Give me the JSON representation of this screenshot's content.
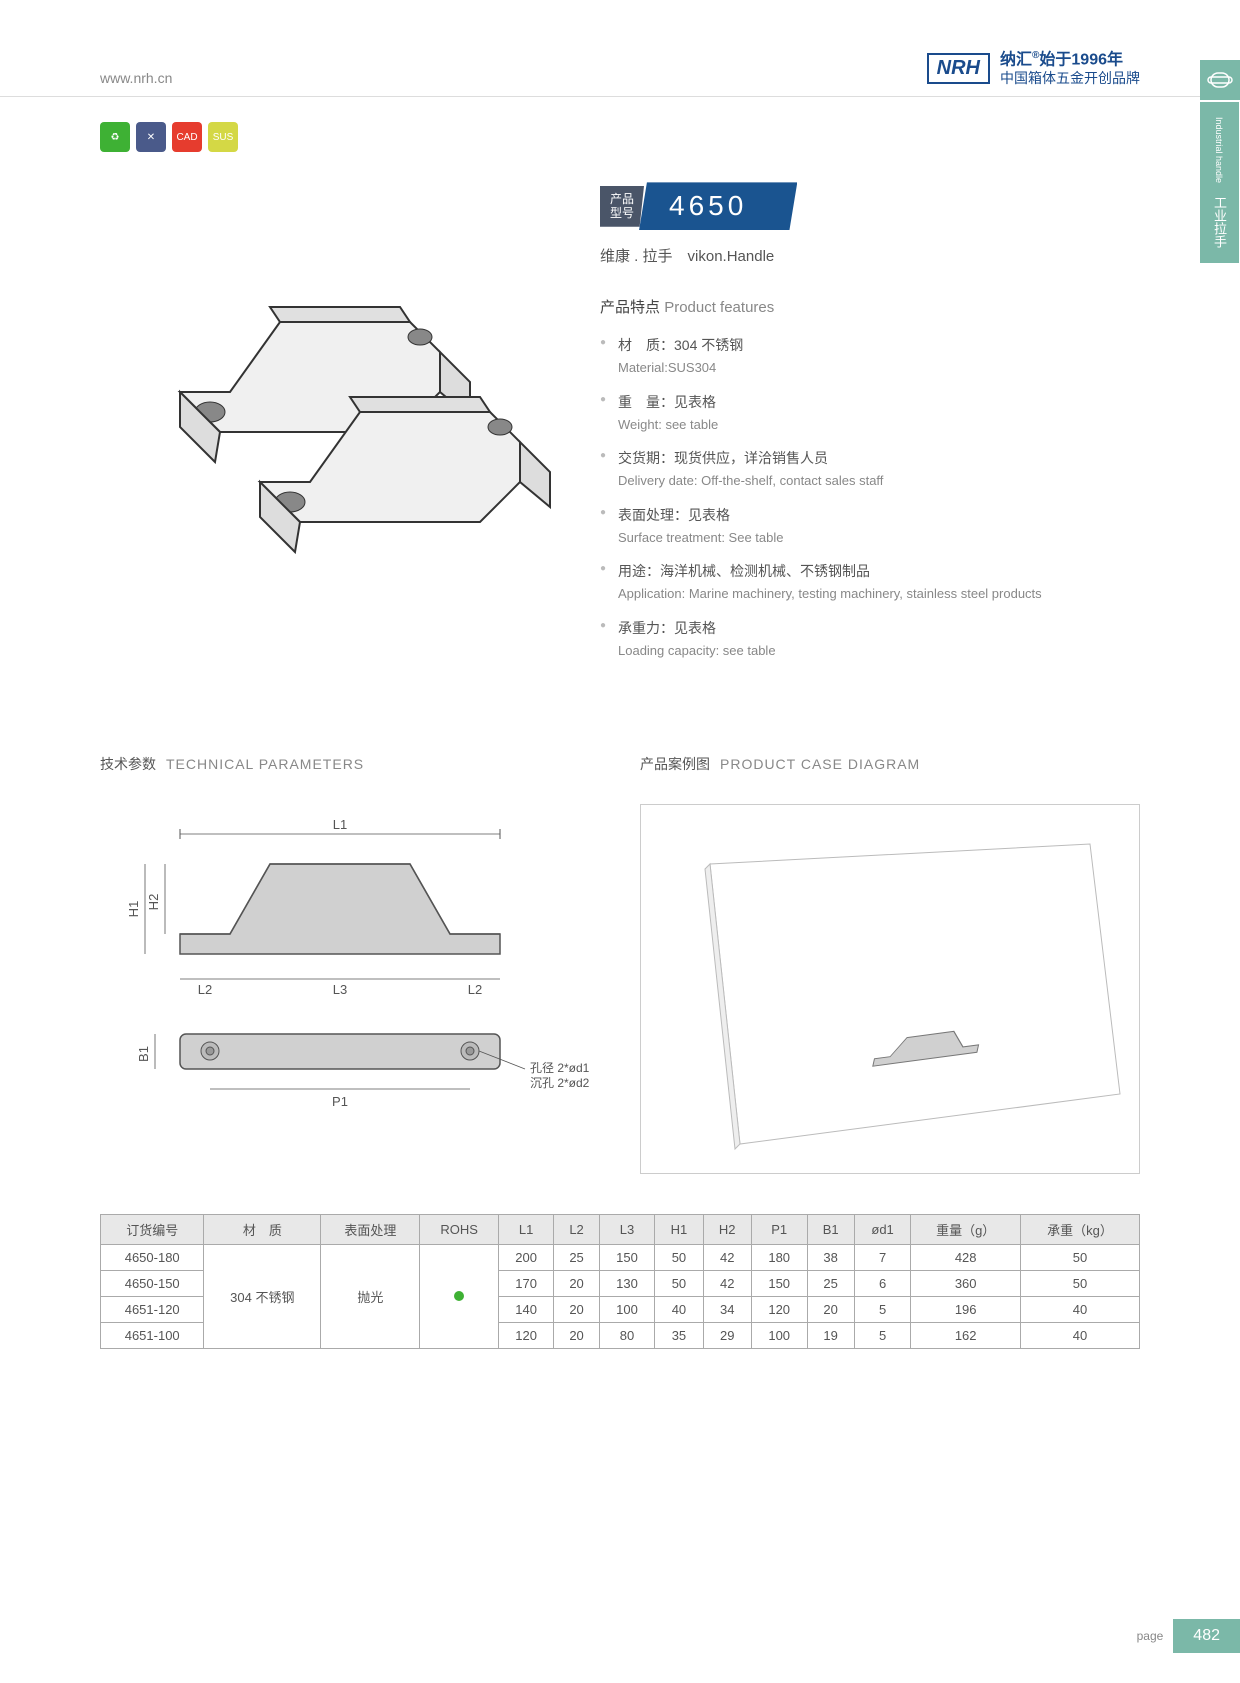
{
  "header": {
    "url": "www.nrh.cn",
    "logo": "NRH",
    "brand_top": "纳汇",
    "brand_year": "始于1996年",
    "brand_sub": "中国箱体五金开创品牌",
    "reg": "®"
  },
  "side_tab": {
    "cn": "工业拉手",
    "en": "Industrial handle"
  },
  "badges": {
    "b1": "♻",
    "b2": "✕",
    "b3": "CAD",
    "b4": "SUS"
  },
  "model": {
    "label": "产品\n型号",
    "number": "4650",
    "name_cn": "维康 . 拉手",
    "name_en": "vikon.Handle"
  },
  "features": {
    "title_cn": "产品特点",
    "title_en": "Product features",
    "items": [
      {
        "cn": "材　质：304 不锈钢",
        "en": "Material:SUS304"
      },
      {
        "cn": "重　量：见表格",
        "en": "Weight: see table"
      },
      {
        "cn": "交货期：现货供应，详洽销售人员",
        "en": "Delivery date: Off-the-shelf, contact sales staff"
      },
      {
        "cn": "表面处理：见表格",
        "en": "Surface treatment: See table"
      },
      {
        "cn": "用途：海洋机械、检测机械、不锈钢制品",
        "en": "Application: Marine machinery, testing machinery, stainless steel products"
      },
      {
        "cn": "承重力：见表格",
        "en": "Loading capacity: see table"
      }
    ]
  },
  "sections": {
    "tech": {
      "cn": "技术参数",
      "en": "TECHNICAL PARAMETERS"
    },
    "case": {
      "cn": "产品案例图",
      "en": "PRODUCT CASE DIAGRAM"
    }
  },
  "diagram_labels": {
    "L1": "L1",
    "L2": "L2",
    "L3": "L3",
    "H1": "H1",
    "H2": "H2",
    "B1": "B1",
    "P1": "P1",
    "hole1": "孔径 2*ød1",
    "hole2": "沉孔 2*ød2"
  },
  "table": {
    "columns": [
      "订货编号",
      "材　质",
      "表面处理",
      "ROHS",
      "L1",
      "L2",
      "L3",
      "H1",
      "H2",
      "P1",
      "B1",
      "ød1",
      "重量（g）",
      "承重（kg）"
    ],
    "material": "304 不锈钢",
    "surface": "抛光",
    "rows": [
      [
        "4650-180",
        "200",
        "25",
        "150",
        "50",
        "42",
        "180",
        "38",
        "7",
        "428",
        "50"
      ],
      [
        "4650-150",
        "170",
        "20",
        "130",
        "50",
        "42",
        "150",
        "25",
        "6",
        "360",
        "50"
      ],
      [
        "4651-120",
        "140",
        "20",
        "100",
        "40",
        "34",
        "120",
        "20",
        "5",
        "196",
        "40"
      ],
      [
        "4651-100",
        "120",
        "20",
        "80",
        "35",
        "29",
        "100",
        "19",
        "5",
        "162",
        "40"
      ]
    ]
  },
  "footer": {
    "page_label": "page",
    "page_num": "482"
  },
  "colors": {
    "brand": "#1a5490",
    "accent": "#7bb8a8",
    "green": "#3eb134"
  }
}
